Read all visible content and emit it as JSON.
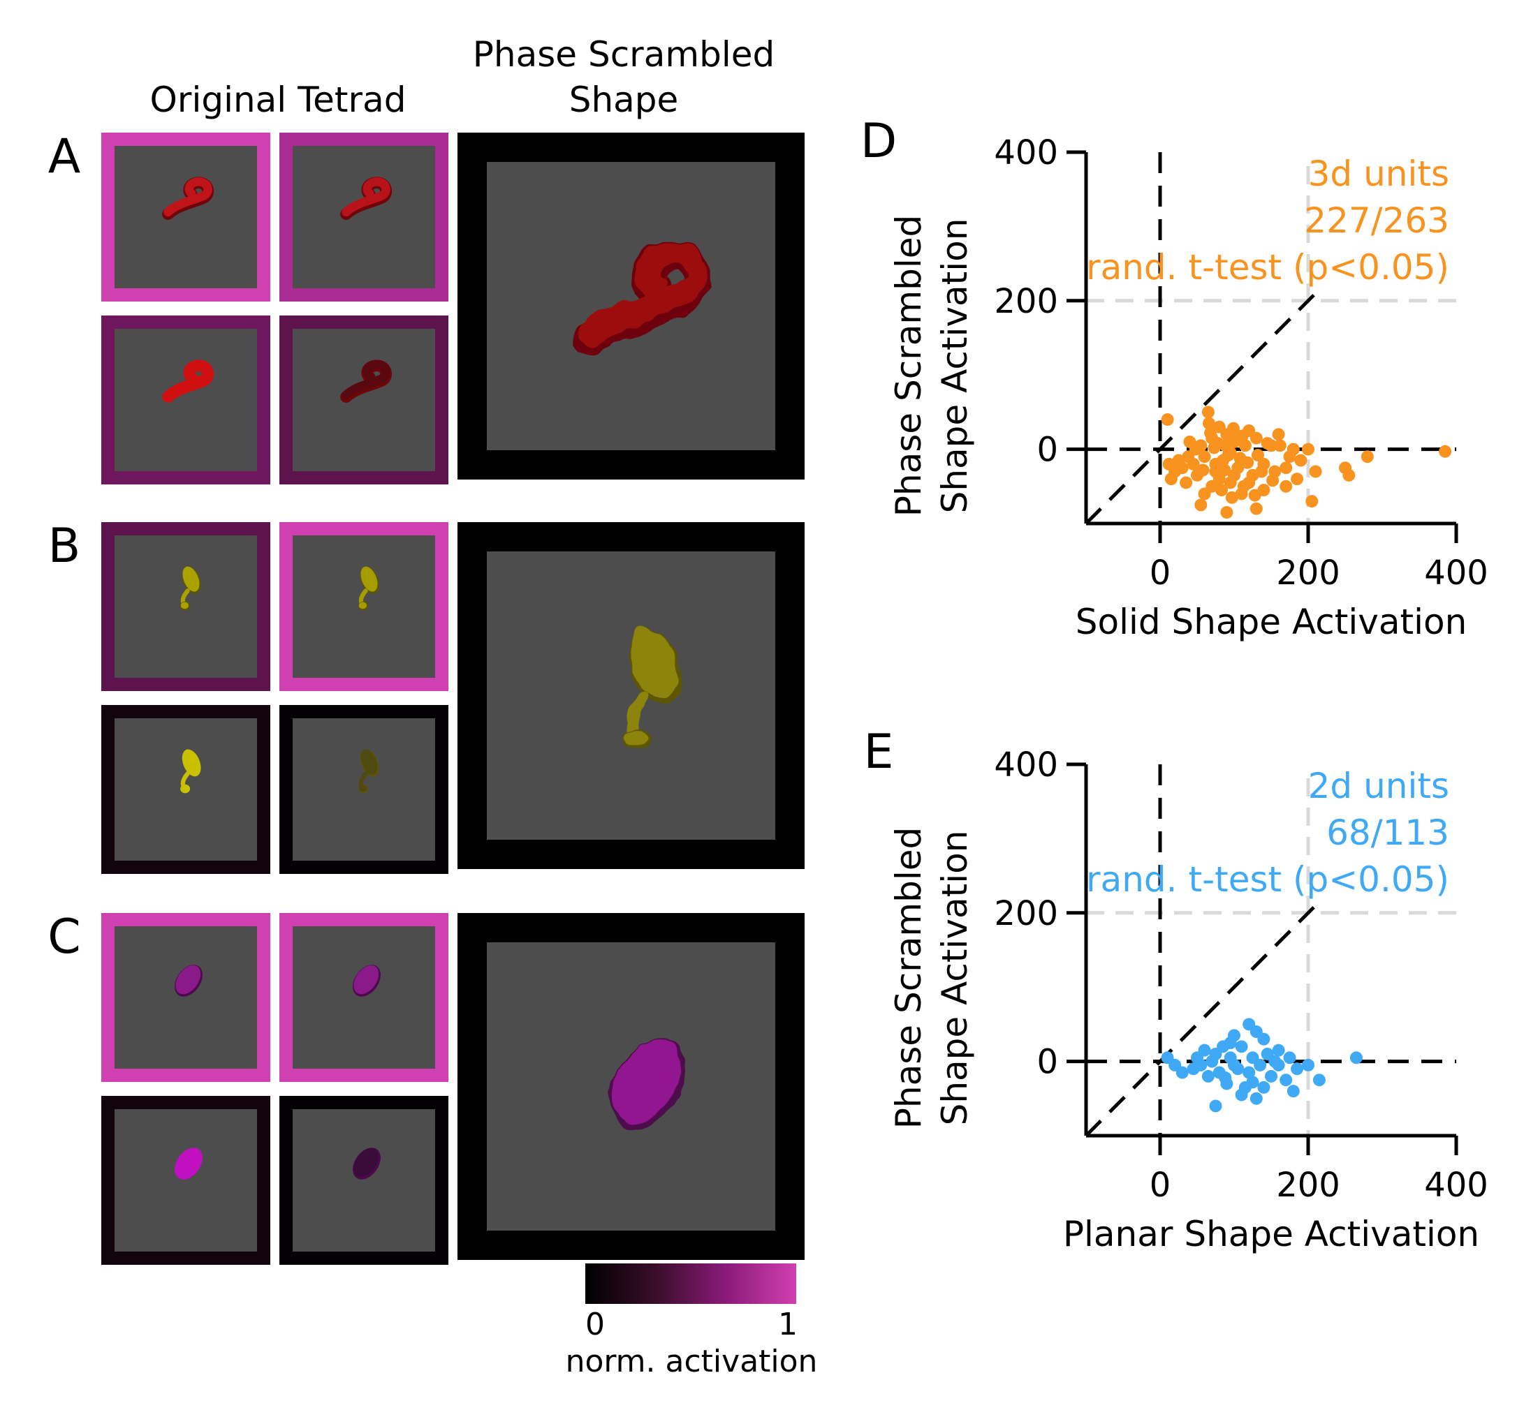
{
  "left": {
    "header_original": "Original Tetrad",
    "header_scrambled_line1": "Phase Scrambled",
    "header_scrambled_line2": "Shape",
    "rows": [
      {
        "letter": "A",
        "shape": "curled-tube",
        "shape_color": "#b80e10",
        "shade_color": "#6e0508",
        "frame_activations": [
          1.0,
          0.82,
          0.55,
          0.48
        ],
        "object_colors": [
          "#c0131a",
          "#b8121a",
          "#d01010",
          "#5a0810"
        ],
        "scrambled_frame_activation": 0.0,
        "scrambled_color": "#9c0c0e"
      },
      {
        "letter": "B",
        "shape": "pear",
        "shape_color": "#a8a000",
        "shade_color": "#5e5600",
        "frame_activations": [
          0.48,
          1.0,
          0.1,
          0.02
        ],
        "object_colors": [
          "#aaa200",
          "#a59d00",
          "#c9c000",
          "#4e4a10"
        ],
        "scrambled_frame_activation": 0.0,
        "scrambled_color": "#8c8410"
      },
      {
        "letter": "C",
        "shape": "ellipsoid",
        "shape_color": "#8e168e",
        "shade_color": "#4e084e",
        "frame_activations": [
          1.0,
          1.0,
          0.1,
          0.02
        ],
        "object_colors": [
          "#8a1a8a",
          "#8a1a8a",
          "#c010c0",
          "#3a0c3a"
        ],
        "scrambled_frame_activation": 0.0,
        "scrambled_color": "#92188f"
      }
    ],
    "colorbar": {
      "min_label": "0",
      "max_label": "1",
      "label": "norm. activation",
      "stops": [
        "#000000",
        "#3a0e2a",
        "#8a1a7a",
        "#d040b0"
      ]
    }
  },
  "chart_data": [
    {
      "type": "scatter",
      "panel_letter": "D",
      "xlabel": "Solid Shape Activation",
      "ylabel_line1": "Phase Scrambled",
      "ylabel_line2": "Shape Activation",
      "xlim": [
        -100,
        400
      ],
      "ylim": [
        -100,
        400
      ],
      "xticks": [
        "0",
        "200",
        "400"
      ],
      "yticks": [
        "0",
        "200",
        "400"
      ],
      "color": "#f7931e",
      "annotation": [
        "3d units",
        "227/263",
        "rand. t-test (p<0.05)"
      ],
      "points": [
        [
          10,
          40
        ],
        [
          65,
          50
        ],
        [
          80,
          30
        ],
        [
          90,
          20
        ],
        [
          40,
          10
        ],
        [
          55,
          5
        ],
        [
          70,
          15
        ],
        [
          100,
          10
        ],
        [
          120,
          25
        ],
        [
          130,
          15
        ],
        [
          150,
          5
        ],
        [
          160,
          20
        ],
        [
          180,
          0
        ],
        [
          200,
          0
        ],
        [
          115,
          5
        ],
        [
          95,
          -5
        ],
        [
          85,
          -15
        ],
        [
          60,
          -10
        ],
        [
          45,
          -20
        ],
        [
          30,
          -25
        ],
        [
          20,
          -30
        ],
        [
          15,
          -40
        ],
        [
          35,
          -45
        ],
        [
          50,
          -35
        ],
        [
          75,
          -30
        ],
        [
          105,
          -25
        ],
        [
          125,
          -35
        ],
        [
          140,
          -20
        ],
        [
          155,
          -30
        ],
        [
          170,
          -25
        ],
        [
          185,
          -40
        ],
        [
          210,
          -30
        ],
        [
          250,
          -25
        ],
        [
          255,
          -35
        ],
        [
          280,
          -10
        ],
        [
          385,
          -3
        ],
        [
          205,
          -70
        ],
        [
          130,
          -80
        ],
        [
          90,
          -85
        ],
        [
          55,
          -75
        ],
        [
          110,
          -60
        ],
        [
          140,
          -55
        ],
        [
          170,
          -50
        ],
        [
          70,
          -50
        ],
        [
          80,
          -40
        ],
        [
          95,
          -45
        ],
        [
          60,
          -60
        ],
        [
          120,
          -45
        ],
        [
          100,
          -35
        ],
        [
          75,
          -20
        ],
        [
          88,
          5
        ],
        [
          102,
          12
        ],
        [
          68,
          22
        ],
        [
          78,
          8
        ],
        [
          92,
          -8
        ],
        [
          108,
          -12
        ],
        [
          118,
          -18
        ],
        [
          132,
          -8
        ],
        [
          145,
          8
        ],
        [
          162,
          5
        ],
        [
          175,
          -10
        ],
        [
          190,
          -15
        ],
        [
          48,
          0
        ],
        [
          38,
          -10
        ],
        [
          25,
          -15
        ],
        [
          12,
          -20
        ],
        [
          58,
          -28
        ],
        [
          83,
          -55
        ],
        [
          97,
          -65
        ],
        [
          113,
          -50
        ],
        [
          128,
          -62
        ],
        [
          66,
          35
        ],
        [
          73,
          2
        ],
        [
          87,
          -28
        ],
        [
          99,
          28
        ],
        [
          111,
          18
        ],
        [
          137,
          -30
        ],
        [
          152,
          -42
        ]
      ]
    },
    {
      "type": "scatter",
      "panel_letter": "E",
      "xlabel": "Planar Shape Activation",
      "ylabel_line1": "Phase Scrambled",
      "ylabel_line2": "Shape Activation",
      "xlim": [
        -100,
        400
      ],
      "ylim": [
        -100,
        400
      ],
      "xticks": [
        "0",
        "200",
        "400"
      ],
      "yticks": [
        "0",
        "200",
        "400"
      ],
      "color": "#3fa9f5",
      "annotation": [
        "2d units",
        "68/113",
        "rand. t-test (p<0.05)"
      ],
      "points": [
        [
          120,
          50
        ],
        [
          130,
          40
        ],
        [
          100,
          35
        ],
        [
          140,
          30
        ],
        [
          85,
          20
        ],
        [
          110,
          20
        ],
        [
          160,
          15
        ],
        [
          60,
          15
        ],
        [
          75,
          10
        ],
        [
          95,
          5
        ],
        [
          125,
          5
        ],
        [
          175,
          5
        ],
        [
          200,
          -5
        ],
        [
          265,
          5
        ],
        [
          10,
          5
        ],
        [
          20,
          -5
        ],
        [
          30,
          -15
        ],
        [
          45,
          -10
        ],
        [
          65,
          -20
        ],
        [
          80,
          -15
        ],
        [
          105,
          -10
        ],
        [
          135,
          -5
        ],
        [
          150,
          -20
        ],
        [
          170,
          -25
        ],
        [
          215,
          -25
        ],
        [
          90,
          -30
        ],
        [
          115,
          -35
        ],
        [
          140,
          -35
        ],
        [
          130,
          -50
        ],
        [
          75,
          -60
        ],
        [
          55,
          -5
        ],
        [
          100,
          -5
        ],
        [
          120,
          -15
        ],
        [
          160,
          -5
        ],
        [
          185,
          -10
        ],
        [
          95,
          25
        ],
        [
          145,
          10
        ],
        [
          110,
          -45
        ],
        [
          88,
          -22
        ],
        [
          125,
          -28
        ],
        [
          70,
          0
        ],
        [
          50,
          5
        ],
        [
          155,
          0
        ],
        [
          180,
          -40
        ]
      ]
    }
  ]
}
